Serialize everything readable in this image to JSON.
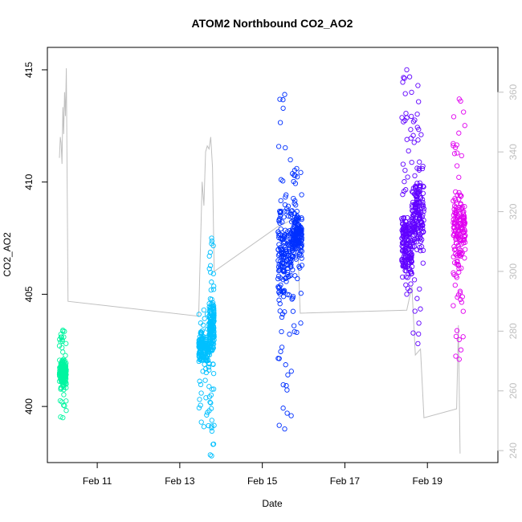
{
  "chart_data": {
    "type": "scatter",
    "title": "ATOM2 Northbound CO2_AO2",
    "xlabel": "Date",
    "ylabel": "CO2_AO2",
    "x_axis": {
      "unit": "date",
      "range": [
        "2023-02-09T19:00",
        "2023-02-20T17:00"
      ],
      "ticks": [
        {
          "value": "2023-02-11",
          "label": "Feb 11"
        },
        {
          "value": "2023-02-13",
          "label": "Feb 13"
        },
        {
          "value": "2023-02-15",
          "label": "Feb 15"
        },
        {
          "value": "2023-02-17",
          "label": "Feb 17"
        },
        {
          "value": "2023-02-19",
          "label": "Feb 19"
        }
      ]
    },
    "y_left": {
      "range": [
        397.5,
        416
      ],
      "ticks": [
        400,
        405,
        410,
        415
      ]
    },
    "y_right": {
      "range": [
        236,
        375
      ],
      "ticks": [
        240,
        260,
        280,
        300,
        320,
        340,
        360
      ],
      "color": "#bfbfbf"
    },
    "grid": false,
    "series": [
      {
        "type": "scatter",
        "axis": "left",
        "color": "#00f5a0",
        "marker": "open-circle",
        "clusters": [
          {
            "time_start": "2023-02-10T02:00",
            "time_end": "2023-02-10T06:00",
            "y_min": 399.5,
            "y_max": 403.4,
            "center": 401.5
          }
        ]
      },
      {
        "type": "scatter",
        "axis": "left",
        "color": "#00c0ff",
        "marker": "open-circle",
        "clusters": [
          {
            "time_start": "2023-02-13T11:00",
            "time_end": "2023-02-13T17:00",
            "y_min": 399.1,
            "y_max": 404.3,
            "center": 402.6
          },
          {
            "time_start": "2023-02-13T17:00",
            "time_end": "2023-02-13T20:00",
            "y_min": 397.8,
            "y_max": 407.5,
            "center": 403.5
          }
        ]
      },
      {
        "type": "scatter",
        "axis": "left",
        "color": "#0030ff",
        "marker": "open-circle",
        "clusters": [
          {
            "time_start": "2023-02-15T09:00",
            "time_end": "2023-02-15T17:00",
            "y_min": 399.0,
            "y_max": 413.9,
            "center": 406.8
          },
          {
            "time_start": "2023-02-15T17:00",
            "time_end": "2023-02-15T23:00",
            "y_min": 403.3,
            "y_max": 410.6,
            "center": 407.5
          }
        ]
      },
      {
        "type": "scatter",
        "axis": "left",
        "color": "#6000ff",
        "marker": "open-circle",
        "clusters": [
          {
            "time_start": "2023-02-18T09:00",
            "time_end": "2023-02-18T15:00",
            "y_min": 405.0,
            "y_max": 415.0,
            "center": 407.2
          },
          {
            "time_start": "2023-02-18T15:00",
            "time_end": "2023-02-18T22:00",
            "y_min": 402.8,
            "y_max": 414.3,
            "center": 408.6
          }
        ]
      },
      {
        "type": "scatter",
        "axis": "left",
        "color": "#e000f0",
        "marker": "open-circle",
        "clusters": [
          {
            "time_start": "2023-02-19T15:00",
            "time_end": "2023-02-19T22:00",
            "y_min": 402.1,
            "y_max": 413.7,
            "center": 407.8
          }
        ]
      },
      {
        "type": "line",
        "axis": "right",
        "color": "#c0c0c0",
        "points": [
          [
            "2023-02-10T02:00",
            338
          ],
          [
            "2023-02-10T02:30",
            345
          ],
          [
            "2023-02-10T03:00",
            343
          ],
          [
            "2023-02-10T03:30",
            336
          ],
          [
            "2023-02-10T04:00",
            355
          ],
          [
            "2023-02-10T04:30",
            346
          ],
          [
            "2023-02-10T05:00",
            360
          ],
          [
            "2023-02-10T05:30",
            352
          ],
          [
            "2023-02-10T06:00",
            368
          ],
          [
            "2023-02-10T07:00",
            290
          ],
          [
            "2023-02-13T11:00",
            285
          ],
          [
            "2023-02-13T13:00",
            330
          ],
          [
            "2023-02-13T14:00",
            322
          ],
          [
            "2023-02-13T15:00",
            340
          ],
          [
            "2023-02-13T16:00",
            342
          ],
          [
            "2023-02-13T17:00",
            341
          ],
          [
            "2023-02-13T18:00",
            345
          ],
          [
            "2023-02-13T19:00",
            335
          ],
          [
            "2023-02-13T20:00",
            300
          ],
          [
            "2023-02-15T09:00",
            315
          ],
          [
            "2023-02-15T20:00",
            318
          ],
          [
            "2023-02-15T22:00",
            286
          ],
          [
            "2023-02-18T12:00",
            287
          ],
          [
            "2023-02-18T15:00",
            295
          ],
          [
            "2023-02-18T17:00",
            272
          ],
          [
            "2023-02-18T20:00",
            274
          ],
          [
            "2023-02-18T22:00",
            251
          ],
          [
            "2023-02-19T17:00",
            254
          ],
          [
            "2023-02-19T18:00",
            282
          ],
          [
            "2023-02-19T19:00",
            239
          ]
        ]
      }
    ]
  }
}
